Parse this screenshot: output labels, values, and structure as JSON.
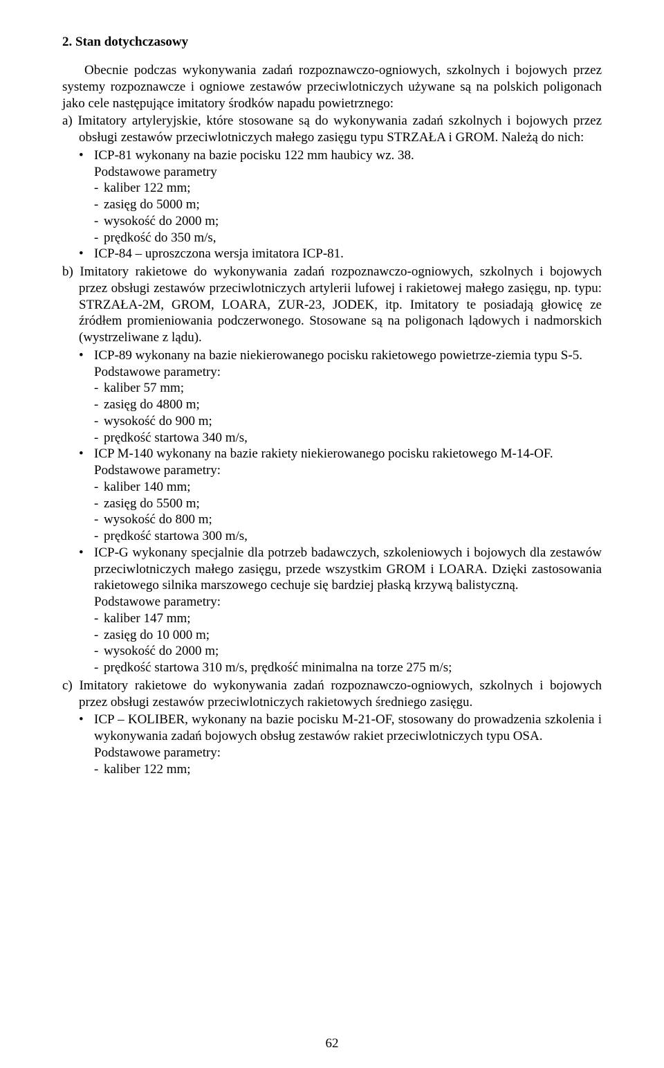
{
  "heading": "2. Stan dotychczasowy",
  "intro": "Obecnie podczas wykonywania zadań rozpoznawczo-ogniowych, szkolnych i bojowych przez systemy rozpoznawcze i ogniowe zestawów przeciwlotniczych używane są na polskich poligonach jako cele następujące imitatory środków napadu powietrznego:",
  "a_label": "a)",
  "a_text": "Imitatory artyleryjskie, które stosowane są do wykonywania zadań szkolnych i bojowych przez obsługi zestawów przeciwlotniczych małego zasięgu typu STRZAŁA i GROM. Należą do nich:",
  "a_items": [
    {
      "title": "ICP-81 wykonany na bazie pocisku 122 mm haubicy wz. 38.",
      "param_intro": "Podstawowe parametry",
      "params": [
        "kaliber 122 mm;",
        "zasięg do 5000 m;",
        "wysokość do 2000 m;",
        "prędkość do 350 m/s,"
      ]
    },
    {
      "title": "ICP-84 – uproszczona wersja imitatora ICP-81."
    }
  ],
  "b_label": "b)",
  "b_text": "Imitatory rakietowe do wykonywania zadań rozpoznawczo-ogniowych, szkolnych i bojowych przez obsługi zestawów przeciwlotniczych artylerii lufowej i rakietowej małego zasięgu, np. typu: STRZAŁA-2M, GROM, LOARA, ZUR-23, JODEK, itp. Imitatory te posiadają głowicę ze źródłem promieniowania podczerwonego. Stosowane są na poligonach lądowych i nadmorskich (wystrzeliwane z lądu).",
  "b_items": [
    {
      "title": "ICP-89 wykonany na bazie niekierowanego pocisku rakietowego powietrze-ziemia typu S-5.",
      "param_intro": "Podstawowe parametry:",
      "params": [
        "kaliber 57 mm;",
        "zasięg do 4800 m;",
        "wysokość do 900 m;",
        "prędkość startowa  340 m/s,"
      ]
    },
    {
      "title": "ICP M-140 wykonany na bazie rakiety niekierowanego pocisku rakietowego M-14-OF.",
      "param_intro": "Podstawowe parametry:",
      "params": [
        "kaliber 140 mm;",
        "zasięg do 5500 m;",
        "wysokość do 800 m;",
        "prędkość startowa  300 m/s,"
      ]
    },
    {
      "title": "ICP-G wykonany specjalnie dla potrzeb badawczych, szkoleniowych i bojowych dla zestawów przeciwlotniczych małego zasięgu, przede wszystkim GROM i LOARA. Dzięki zastosowania rakietowego silnika marszowego cechuje się bardziej płaską krzywą balistyczną.",
      "param_intro": "Podstawowe parametry:",
      "params": [
        "kaliber 147 mm;",
        "zasięg do 10 000 m;",
        "wysokość do 2000 m;",
        "prędkość startowa  310 m/s, prędkość minimalna na torze 275 m/s;"
      ]
    }
  ],
  "c_label": "c)",
  "c_text": "Imitatory rakietowe do wykonywania zadań rozpoznawczo-ogniowych, szkolnych i bojowych przez obsługi zestawów przeciwlotniczych rakietowych średniego zasięgu.",
  "c_items": [
    {
      "title": "ICP – KOLIBER, wykonany na bazie pocisku M-21-OF, stosowany do prowadzenia szkolenia i wykonywania zadań bojowych obsług zestawów rakiet przeciwlotniczych typu OSA.",
      "param_intro": "Podstawowe parametry:",
      "params": [
        "kaliber 122 mm;"
      ]
    }
  ],
  "page_number": "62"
}
